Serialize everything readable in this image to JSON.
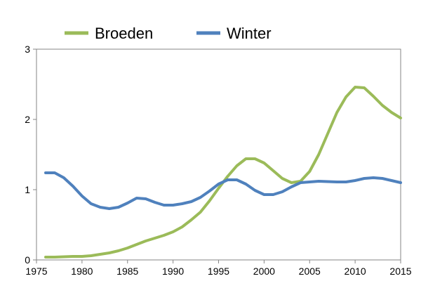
{
  "chart_data": {
    "type": "line",
    "title": "",
    "xlabel": "",
    "ylabel": "",
    "xlim": [
      1975,
      2015
    ],
    "ylim": [
      0,
      3
    ],
    "xticks": [
      1975,
      1980,
      1985,
      1990,
      1995,
      2000,
      2005,
      2010,
      2015
    ],
    "yticks": [
      0,
      1,
      2,
      3
    ],
    "grid": false,
    "legend": "top",
    "x": [
      1976,
      1977,
      1978,
      1979,
      1980,
      1981,
      1982,
      1983,
      1984,
      1985,
      1986,
      1987,
      1988,
      1989,
      1990,
      1991,
      1992,
      1993,
      1994,
      1995,
      1996,
      1997,
      1998,
      1999,
      2000,
      2001,
      2002,
      2003,
      2004,
      2005,
      2006,
      2007,
      2008,
      2009,
      2010,
      2011,
      2012,
      2013,
      2014,
      2015
    ],
    "series": [
      {
        "name": "Broeden",
        "color": "#9bbb59",
        "values": [
          0.04,
          0.04,
          0.045,
          0.05,
          0.05,
          0.06,
          0.08,
          0.1,
          0.13,
          0.17,
          0.22,
          0.27,
          0.31,
          0.35,
          0.4,
          0.47,
          0.57,
          0.68,
          0.84,
          1.02,
          1.19,
          1.34,
          1.44,
          1.44,
          1.38,
          1.27,
          1.16,
          1.1,
          1.12,
          1.26,
          1.5,
          1.8,
          2.1,
          2.32,
          2.46,
          2.45,
          2.33,
          2.2,
          2.1,
          2.02
        ]
      },
      {
        "name": "Winter",
        "color": "#4f81bd",
        "values": [
          1.24,
          1.24,
          1.17,
          1.05,
          0.91,
          0.8,
          0.75,
          0.73,
          0.75,
          0.81,
          0.88,
          0.87,
          0.82,
          0.78,
          0.78,
          0.8,
          0.83,
          0.89,
          0.98,
          1.08,
          1.14,
          1.14,
          1.08,
          0.99,
          0.93,
          0.93,
          0.97,
          1.04,
          1.1,
          1.11,
          1.12,
          1.115,
          1.11,
          1.11,
          1.13,
          1.16,
          1.17,
          1.16,
          1.13,
          1.1
        ]
      }
    ]
  }
}
